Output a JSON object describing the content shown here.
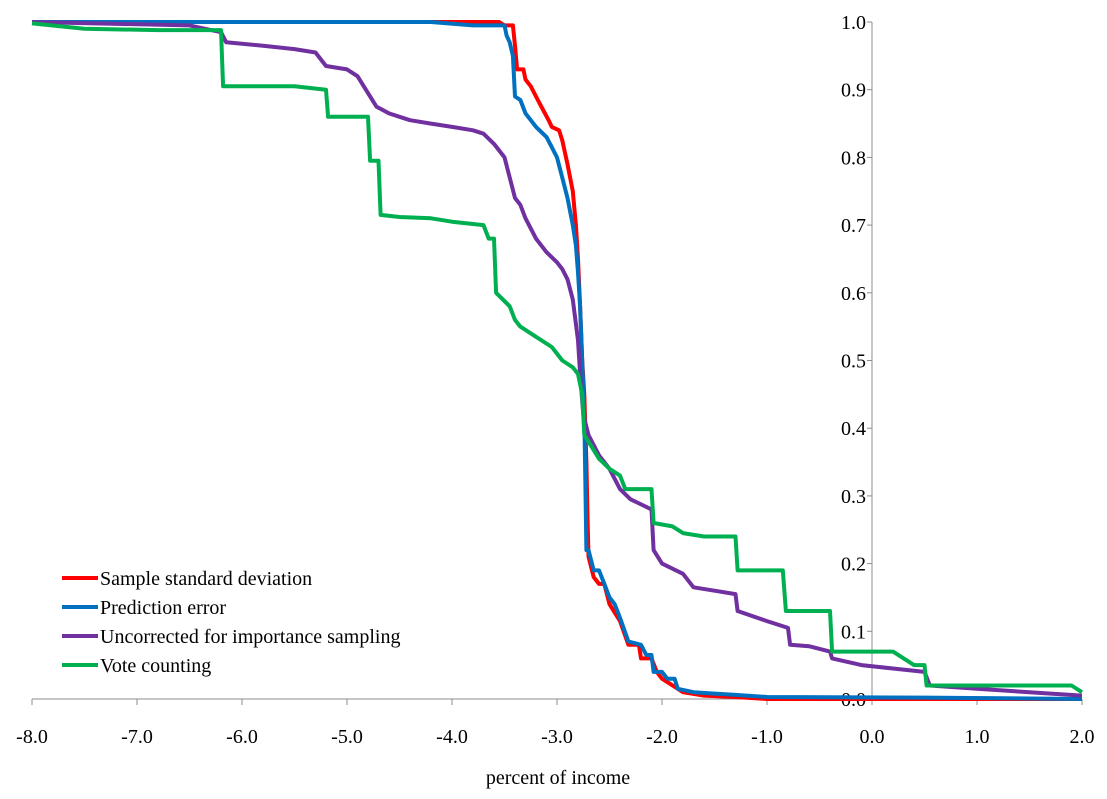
{
  "chart_data": {
    "type": "line",
    "title": "",
    "xlabel": "percent of income",
    "ylabel": "",
    "xlim": [
      -8.0,
      2.0
    ],
    "ylim": [
      0.0,
      1.0
    ],
    "x_ticks": [
      "-8.0",
      "-7.0",
      "-6.0",
      "-5.0",
      "-4.0",
      "-3.0",
      "-2.0",
      "-1.0",
      "0.0",
      "1.0",
      "2.0"
    ],
    "y_ticks": [
      "0.0",
      "0.1",
      "0.2",
      "0.3",
      "0.4",
      "0.5",
      "0.6",
      "0.7",
      "0.8",
      "0.9",
      "1.0"
    ],
    "y_axis_at_x": 0.0,
    "grid": false,
    "legend_position": "bottom-left",
    "series": [
      {
        "name": "Sample standard deviation",
        "color": "#ff0000",
        "points": [
          [
            -8.0,
            1.0
          ],
          [
            -3.55,
            1.0
          ],
          [
            -3.5,
            0.995
          ],
          [
            -3.42,
            0.995
          ],
          [
            -3.4,
            0.965
          ],
          [
            -3.38,
            0.93
          ],
          [
            -3.32,
            0.93
          ],
          [
            -3.3,
            0.915
          ],
          [
            -3.25,
            0.905
          ],
          [
            -3.2,
            0.89
          ],
          [
            -3.15,
            0.875
          ],
          [
            -3.08,
            0.855
          ],
          [
            -3.05,
            0.845
          ],
          [
            -2.98,
            0.84
          ],
          [
            -2.95,
            0.825
          ],
          [
            -2.9,
            0.79
          ],
          [
            -2.85,
            0.75
          ],
          [
            -2.82,
            0.7
          ],
          [
            -2.8,
            0.65
          ],
          [
            -2.78,
            0.58
          ],
          [
            -2.76,
            0.5
          ],
          [
            -2.74,
            0.45
          ],
          [
            -2.72,
            0.35
          ],
          [
            -2.71,
            0.27
          ],
          [
            -2.7,
            0.21
          ],
          [
            -2.65,
            0.18
          ],
          [
            -2.6,
            0.17
          ],
          [
            -2.55,
            0.17
          ],
          [
            -2.5,
            0.14
          ],
          [
            -2.4,
            0.115
          ],
          [
            -2.32,
            0.08
          ],
          [
            -2.22,
            0.08
          ],
          [
            -2.2,
            0.06
          ],
          [
            -2.1,
            0.06
          ],
          [
            -2.05,
            0.04
          ],
          [
            -2.0,
            0.03
          ],
          [
            -1.95,
            0.025
          ],
          [
            -1.85,
            0.015
          ],
          [
            -1.8,
            0.01
          ],
          [
            -1.6,
            0.005
          ],
          [
            -1.3,
            0.003
          ],
          [
            -1.0,
            0.0
          ],
          [
            2.0,
            0.0
          ]
        ]
      },
      {
        "name": "Prediction error",
        "color": "#0070c0",
        "points": [
          [
            -8.0,
            1.0
          ],
          [
            -4.2,
            1.0
          ],
          [
            -3.8,
            0.995
          ],
          [
            -3.5,
            0.995
          ],
          [
            -3.48,
            0.98
          ],
          [
            -3.45,
            0.97
          ],
          [
            -3.42,
            0.95
          ],
          [
            -3.4,
            0.89
          ],
          [
            -3.35,
            0.885
          ],
          [
            -3.3,
            0.865
          ],
          [
            -3.25,
            0.855
          ],
          [
            -3.2,
            0.845
          ],
          [
            -3.1,
            0.83
          ],
          [
            -3.05,
            0.815
          ],
          [
            -3.0,
            0.8
          ],
          [
            -2.95,
            0.77
          ],
          [
            -2.9,
            0.74
          ],
          [
            -2.85,
            0.7
          ],
          [
            -2.82,
            0.67
          ],
          [
            -2.8,
            0.63
          ],
          [
            -2.78,
            0.58
          ],
          [
            -2.76,
            0.5
          ],
          [
            -2.74,
            0.42
          ],
          [
            -2.72,
            0.22
          ],
          [
            -2.7,
            0.22
          ],
          [
            -2.65,
            0.19
          ],
          [
            -2.6,
            0.19
          ],
          [
            -2.55,
            0.17
          ],
          [
            -2.5,
            0.15
          ],
          [
            -2.45,
            0.14
          ],
          [
            -2.4,
            0.12
          ],
          [
            -2.32,
            0.085
          ],
          [
            -2.2,
            0.08
          ],
          [
            -2.15,
            0.065
          ],
          [
            -2.1,
            0.065
          ],
          [
            -2.08,
            0.04
          ],
          [
            -2.0,
            0.04
          ],
          [
            -1.95,
            0.03
          ],
          [
            -1.88,
            0.03
          ],
          [
            -1.85,
            0.015
          ],
          [
            -1.7,
            0.01
          ],
          [
            -1.5,
            0.008
          ],
          [
            -1.3,
            0.006
          ],
          [
            -1.0,
            0.003
          ],
          [
            0.5,
            0.002
          ],
          [
            2.0,
            0.0
          ]
        ]
      },
      {
        "name": "Uncorrected for importance sampling",
        "color": "#7030a0",
        "points": [
          [
            -8.0,
            1.0
          ],
          [
            -6.5,
            0.995
          ],
          [
            -6.2,
            0.985
          ],
          [
            -6.15,
            0.97
          ],
          [
            -5.8,
            0.965
          ],
          [
            -5.5,
            0.96
          ],
          [
            -5.3,
            0.955
          ],
          [
            -5.2,
            0.935
          ],
          [
            -5.0,
            0.93
          ],
          [
            -4.9,
            0.92
          ],
          [
            -4.8,
            0.895
          ],
          [
            -4.72,
            0.875
          ],
          [
            -4.6,
            0.865
          ],
          [
            -4.5,
            0.86
          ],
          [
            -4.4,
            0.855
          ],
          [
            -4.2,
            0.85
          ],
          [
            -4.0,
            0.845
          ],
          [
            -3.8,
            0.84
          ],
          [
            -3.7,
            0.835
          ],
          [
            -3.6,
            0.82
          ],
          [
            -3.5,
            0.8
          ],
          [
            -3.4,
            0.74
          ],
          [
            -3.35,
            0.73
          ],
          [
            -3.3,
            0.71
          ],
          [
            -3.2,
            0.68
          ],
          [
            -3.1,
            0.66
          ],
          [
            -3.0,
            0.645
          ],
          [
            -2.95,
            0.635
          ],
          [
            -2.9,
            0.62
          ],
          [
            -2.85,
            0.59
          ],
          [
            -2.8,
            0.53
          ],
          [
            -2.78,
            0.48
          ],
          [
            -2.75,
            0.42
          ],
          [
            -2.7,
            0.39
          ],
          [
            -2.6,
            0.36
          ],
          [
            -2.5,
            0.34
          ],
          [
            -2.4,
            0.31
          ],
          [
            -2.3,
            0.295
          ],
          [
            -2.1,
            0.28
          ],
          [
            -2.08,
            0.22
          ],
          [
            -2.0,
            0.2
          ],
          [
            -1.8,
            0.185
          ],
          [
            -1.7,
            0.165
          ],
          [
            -1.5,
            0.16
          ],
          [
            -1.3,
            0.155
          ],
          [
            -1.28,
            0.13
          ],
          [
            -1.0,
            0.115
          ],
          [
            -0.8,
            0.105
          ],
          [
            -0.78,
            0.08
          ],
          [
            -0.6,
            0.078
          ],
          [
            -0.4,
            0.07
          ],
          [
            -0.38,
            0.06
          ],
          [
            -0.1,
            0.05
          ],
          [
            0.2,
            0.045
          ],
          [
            0.5,
            0.04
          ],
          [
            0.55,
            0.02
          ],
          [
            1.0,
            0.015
          ],
          [
            1.5,
            0.01
          ],
          [
            2.0,
            0.005
          ]
        ]
      },
      {
        "name": "Vote counting",
        "color": "#00b050",
        "points": [
          [
            -8.0,
            0.998
          ],
          [
            -7.5,
            0.99
          ],
          [
            -6.8,
            0.988
          ],
          [
            -6.5,
            0.988
          ],
          [
            -6.2,
            0.988
          ],
          [
            -6.18,
            0.905
          ],
          [
            -5.5,
            0.905
          ],
          [
            -5.2,
            0.9
          ],
          [
            -5.18,
            0.86
          ],
          [
            -4.8,
            0.86
          ],
          [
            -4.78,
            0.795
          ],
          [
            -4.7,
            0.795
          ],
          [
            -4.68,
            0.715
          ],
          [
            -4.5,
            0.712
          ],
          [
            -4.2,
            0.71
          ],
          [
            -4.0,
            0.705
          ],
          [
            -3.7,
            0.7
          ],
          [
            -3.65,
            0.68
          ],
          [
            -3.6,
            0.68
          ],
          [
            -3.58,
            0.6
          ],
          [
            -3.45,
            0.58
          ],
          [
            -3.4,
            0.56
          ],
          [
            -3.35,
            0.55
          ],
          [
            -3.2,
            0.535
          ],
          [
            -3.05,
            0.52
          ],
          [
            -2.95,
            0.5
          ],
          [
            -2.85,
            0.49
          ],
          [
            -2.8,
            0.48
          ],
          [
            -2.76,
            0.45
          ],
          [
            -2.74,
            0.39
          ],
          [
            -2.7,
            0.38
          ],
          [
            -2.6,
            0.355
          ],
          [
            -2.5,
            0.34
          ],
          [
            -2.4,
            0.33
          ],
          [
            -2.35,
            0.31
          ],
          [
            -2.1,
            0.31
          ],
          [
            -2.08,
            0.26
          ],
          [
            -1.9,
            0.255
          ],
          [
            -1.8,
            0.245
          ],
          [
            -1.6,
            0.24
          ],
          [
            -1.3,
            0.24
          ],
          [
            -1.28,
            0.19
          ],
          [
            -0.85,
            0.19
          ],
          [
            -0.82,
            0.13
          ],
          [
            -0.4,
            0.13
          ],
          [
            -0.38,
            0.07
          ],
          [
            0.2,
            0.07
          ],
          [
            0.4,
            0.05
          ],
          [
            0.5,
            0.05
          ],
          [
            0.52,
            0.02
          ],
          [
            1.0,
            0.02
          ],
          [
            1.9,
            0.02
          ],
          [
            2.0,
            0.01
          ]
        ]
      }
    ]
  }
}
